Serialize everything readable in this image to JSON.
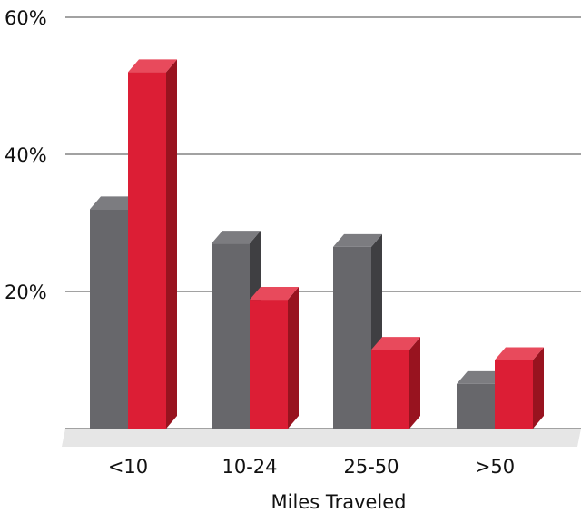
{
  "chart_data": {
    "type": "bar",
    "title": "",
    "xlabel": "Miles Traveled",
    "ylabel": "",
    "categories": [
      "<10",
      "10-24",
      "25-50",
      ">50"
    ],
    "series": [
      {
        "values": [
          32,
          27,
          26.5,
          6.5
        ]
      },
      {
        "values": [
          52,
          18.8,
          11.5,
          10
        ]
      }
    ],
    "ylim": [
      0,
      60
    ],
    "yticks": [
      20,
      40,
      60
    ],
    "ytick_labels": [
      "20%",
      "40%",
      "60%"
    ],
    "grid": true,
    "legend": "none",
    "colors": {
      "series_0": {
        "front": "#67676b",
        "side": "#3f3f42",
        "top": "#7c7c80"
      },
      "series_1": {
        "front": "#dc1e35",
        "side": "#98131f",
        "top": "#e84a5c"
      },
      "floor": "#e6e6e6"
    }
  }
}
